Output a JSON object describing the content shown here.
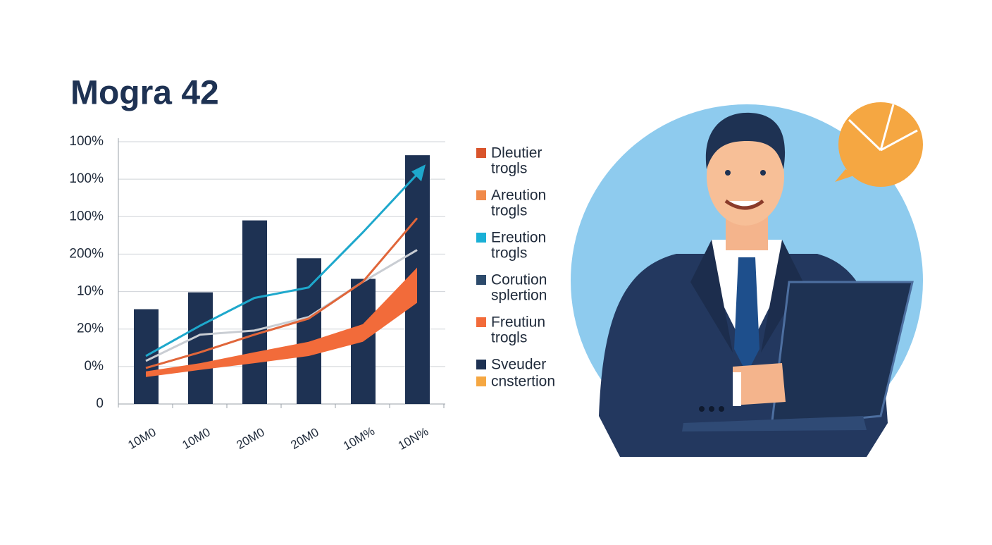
{
  "chart_data": {
    "type": "bar",
    "title": "Mogra 42",
    "categories": [
      "10M0",
      "10M0",
      "20M0",
      "20M0",
      "10M%",
      "10N%"
    ],
    "values": [
      2.53,
      2.98,
      4.9,
      3.89,
      3.34,
      6.64
    ],
    "color": "#1e3253",
    "ylim": [
      0,
      7
    ],
    "yticks": [
      0,
      {
        "value": 1,
        "label": "0%"
      },
      {
        "value": 2,
        "label": "20%"
      },
      {
        "value": 3,
        "label": "10%"
      },
      {
        "value": 4,
        "label": "200%"
      },
      {
        "value": 5,
        "label": "100%"
      },
      {
        "value": 6,
        "label": "100%"
      },
      {
        "value": 7,
        "label": "100%"
      }
    ],
    "grid": true,
    "lines": [
      {
        "color": "#1ea8cc",
        "values": [
          1.28,
          2.09,
          2.83,
          3.11,
          4.58,
          6.13
        ]
      },
      {
        "color": "#c9cdd3",
        "values": [
          1.15,
          1.85,
          1.96,
          2.32,
          3.26,
          4.11
        ]
      },
      {
        "color": "#e0663a",
        "values": [
          0.96,
          1.38,
          1.85,
          2.28,
          3.26,
          4.96
        ]
      }
    ],
    "band": {
      "color": "#f26b3a",
      "upper": [
        0.87,
        1.09,
        1.38,
        1.66,
        2.13,
        3.64
      ],
      "lower": [
        0.72,
        0.91,
        1.09,
        1.28,
        1.66,
        2.7
      ]
    },
    "legend": [
      {
        "color": "#d9542b",
        "label": [
          "Dleutier",
          "trogls"
        ]
      },
      {
        "color": "#f08a4b",
        "label": [
          "Areution",
          "trogls"
        ]
      },
      {
        "color": "#1ab0d6",
        "label": [
          "Ereution",
          "trogls"
        ]
      },
      {
        "color": "#2c4a6b",
        "label": [
          "Corution",
          "splertion"
        ]
      },
      {
        "color": "#f26b3a",
        "label": [
          "Freutiun",
          "trogls"
        ]
      },
      {
        "color": "#1e3253",
        "label": [
          "Sveuder"
        ]
      },
      {
        "color": "#f5a742",
        "label": [
          "cnstertion"
        ]
      }
    ]
  }
}
